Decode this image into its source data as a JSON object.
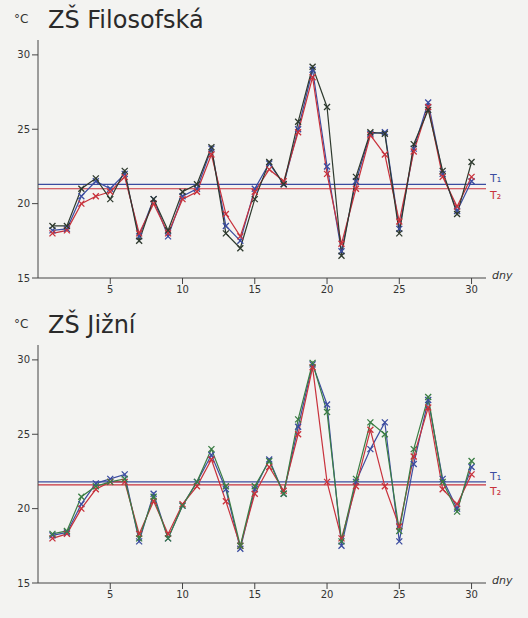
{
  "chart_data": [
    {
      "type": "line",
      "title": "ZŠ Filosofská",
      "y_label": "°C",
      "x_label": "dny",
      "x": [
        1,
        2,
        3,
        4,
        5,
        6,
        7,
        8,
        9,
        10,
        11,
        12,
        13,
        14,
        15,
        16,
        17,
        18,
        19,
        20,
        21,
        22,
        23,
        24,
        25,
        26,
        27,
        28,
        29,
        30
      ],
      "series": [
        {
          "color": "#3b4ca0",
          "marker": "x",
          "values": [
            18.2,
            18.3,
            20.5,
            21.5,
            21.0,
            22.0,
            17.8,
            20.3,
            17.8,
            20.5,
            21.0,
            23.7,
            18.5,
            17.5,
            21.0,
            22.7,
            21.3,
            25.0,
            29.0,
            22.5,
            16.8,
            21.5,
            24.7,
            24.8,
            18.3,
            23.7,
            26.8,
            22.0,
            19.5,
            21.5
          ]
        },
        {
          "color": "#c8323c",
          "marker": "x",
          "values": [
            18.0,
            18.2,
            20.0,
            20.5,
            20.8,
            21.8,
            18.0,
            20.0,
            18.0,
            20.3,
            20.8,
            23.3,
            19.3,
            17.8,
            20.8,
            22.3,
            21.5,
            24.8,
            28.5,
            22.0,
            17.3,
            21.0,
            24.6,
            23.3,
            18.8,
            23.5,
            26.5,
            21.8,
            19.8,
            21.8
          ]
        },
        {
          "color": "#2e3a2e",
          "marker": "x",
          "values": [
            18.5,
            18.5,
            21.0,
            21.7,
            20.3,
            22.2,
            17.5,
            20.3,
            18.2,
            20.8,
            21.3,
            23.8,
            18.0,
            17.0,
            20.3,
            22.8,
            21.3,
            25.5,
            29.2,
            26.5,
            16.5,
            21.8,
            24.8,
            24.7,
            18.0,
            24.0,
            26.3,
            22.2,
            19.3,
            22.8
          ]
        }
      ],
      "reference_lines": [
        {
          "label": "T₁",
          "value": 21.3,
          "color": "#3b4ca0"
        },
        {
          "label": "T₂",
          "value": 21.0,
          "color": "#c8323c"
        }
      ],
      "xlim": [
        0,
        31
      ],
      "xticks": [
        5,
        10,
        15,
        20,
        25,
        30
      ],
      "ylim": [
        15,
        31
      ],
      "yticks": [
        15,
        20,
        25,
        30
      ]
    },
    {
      "type": "line",
      "title": "ZŠ Jižní",
      "y_label": "°C",
      "x_label": "dny",
      "x": [
        1,
        2,
        3,
        4,
        5,
        6,
        7,
        8,
        9,
        10,
        11,
        12,
        13,
        14,
        15,
        16,
        17,
        18,
        19,
        20,
        21,
        22,
        23,
        24,
        25,
        26,
        27,
        28,
        29,
        30
      ],
      "series": [
        {
          "color": "#3b4ca0",
          "marker": "x",
          "values": [
            18.2,
            18.4,
            20.3,
            21.7,
            22.0,
            22.3,
            17.8,
            21.0,
            18.0,
            20.2,
            21.8,
            23.6,
            21.3,
            17.3,
            21.3,
            23.3,
            21.0,
            25.5,
            29.7,
            27.0,
            17.5,
            21.8,
            24.0,
            25.8,
            17.8,
            23.0,
            27.3,
            22.0,
            20.0,
            22.8
          ]
        },
        {
          "color": "#c8323c",
          "marker": "x",
          "values": [
            18.0,
            18.3,
            20.0,
            21.3,
            21.8,
            21.8,
            18.3,
            20.5,
            18.3,
            20.3,
            21.5,
            23.3,
            20.5,
            17.5,
            21.0,
            22.8,
            21.2,
            25.0,
            29.5,
            21.8,
            18.0,
            21.5,
            25.3,
            21.5,
            18.8,
            23.5,
            26.8,
            21.3,
            20.3,
            22.3
          ]
        },
        {
          "color": "#3a7d44",
          "marker": "x",
          "values": [
            18.3,
            18.5,
            20.8,
            21.5,
            21.8,
            22.0,
            18.0,
            20.8,
            18.0,
            20.2,
            21.8,
            24.0,
            21.5,
            17.5,
            21.5,
            23.2,
            21.0,
            26.0,
            29.8,
            26.5,
            17.8,
            22.0,
            25.8,
            25.0,
            18.5,
            24.0,
            27.5,
            21.8,
            19.8,
            23.2
          ]
        }
      ],
      "reference_lines": [
        {
          "label": "T₁",
          "value": 21.8,
          "color": "#3b4ca0"
        },
        {
          "label": "T₂",
          "value": 21.6,
          "color": "#c8323c"
        }
      ],
      "xlim": [
        0,
        31
      ],
      "xticks": [
        5,
        10,
        15,
        20,
        25,
        30
      ],
      "ylim": [
        15,
        31
      ],
      "yticks": [
        15,
        20,
        25,
        30
      ]
    }
  ]
}
